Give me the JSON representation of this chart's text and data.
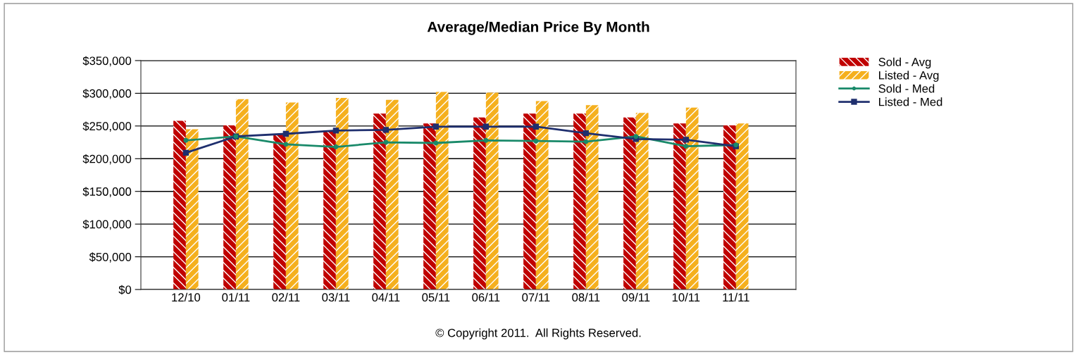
{
  "chart_data": {
    "type": "bar",
    "title": "Average/Median Price By Month",
    "categories": [
      "12/10",
      "01/11",
      "02/11",
      "03/11",
      "04/11",
      "05/11",
      "06/11",
      "07/11",
      "08/11",
      "09/11",
      "10/11",
      "11/11"
    ],
    "series": [
      {
        "name": "Sold - Avg",
        "color": "#c00000",
        "values": [
          258000,
          251000,
          237000,
          243000,
          269000,
          254000,
          263000,
          269000,
          269000,
          263000,
          254000,
          251000
        ]
      },
      {
        "name": "Listed - Avg",
        "color": "#f5b01e",
        "values": [
          245000,
          291000,
          286000,
          293000,
          290000,
          302000,
          301000,
          288000,
          282000,
          270000,
          278000,
          254000
        ]
      },
      {
        "name": "Sold - Med",
        "type": "line",
        "color": "#1a8a6a",
        "marker": "circle",
        "values": [
          228000,
          234000,
          222000,
          218000,
          225000,
          224000,
          228000,
          227000,
          226000,
          234000,
          219000,
          221000
        ]
      },
      {
        "name": "Listed - Med",
        "type": "line",
        "color": "#1f2f6e",
        "marker": "square",
        "values": [
          209000,
          234000,
          238000,
          243000,
          244000,
          249000,
          249000,
          249000,
          239000,
          230000,
          229000,
          219000
        ]
      }
    ],
    "ylim": [
      0,
      350000
    ],
    "yticks": [
      {
        "value": 0,
        "label": "$0"
      },
      {
        "value": 50000,
        "label": "$50,000"
      },
      {
        "value": 100000,
        "label": "$100,000"
      },
      {
        "value": 150000,
        "label": "$150,000"
      },
      {
        "value": 200000,
        "label": "$200,000"
      },
      {
        "value": 250000,
        "label": "$250,000"
      },
      {
        "value": 300000,
        "label": "$300,000"
      },
      {
        "value": 350000,
        "label": "$350,000"
      }
    ],
    "grid": "y",
    "legend": "top right",
    "annotations": [
      "© Copyright 2011.  All Rights Reserved."
    ]
  }
}
